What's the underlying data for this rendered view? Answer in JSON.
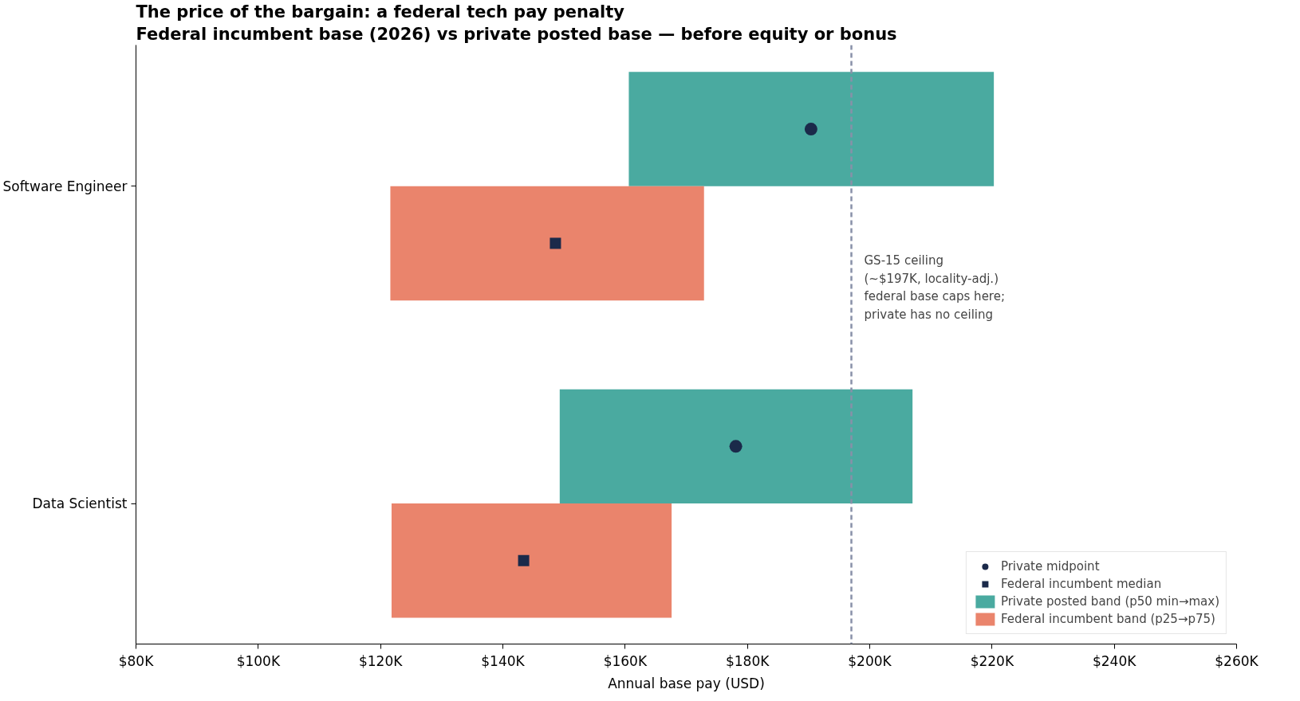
{
  "chart_data": {
    "type": "bar",
    "orientation": "horizontal",
    "title": "The price of the bargain: a federal tech pay penalty",
    "subtitle": "Federal incumbent base (2026) vs private posted base — before equity or bonus",
    "xlabel": "Annual base pay (USD)",
    "categories": [
      "Software Engineer",
      "Data Scientist"
    ],
    "series": [
      {
        "name": "Private midpoint",
        "type": "scatter",
        "marker": "circle",
        "color": "#1b2a4a",
        "values": [
          190.4,
          178.1
        ]
      },
      {
        "name": "Federal incumbent median",
        "type": "scatter",
        "marker": "square",
        "color": "#1b2a4a",
        "values": [
          148.6,
          143.4
        ]
      },
      {
        "name": "Private posted band (p50 min→max)",
        "color": "#4aaaa0",
        "base": [
          160.6,
          149.3
        ],
        "values": [
          59.7,
          57.7
        ]
      },
      {
        "name": "Federal incumbent band (p25→p75)",
        "color": "#ea846c",
        "base": [
          121.6,
          121.8
        ],
        "values": [
          51.3,
          45.8
        ]
      }
    ],
    "xlim": [
      80,
      260
    ],
    "xticks": [
      {
        "value": 80,
        "label": "$80K"
      },
      {
        "value": 100,
        "label": "$100K"
      },
      {
        "value": 120,
        "label": "$120K"
      },
      {
        "value": 140,
        "label": "$140K"
      },
      {
        "value": 160,
        "label": "$160K"
      },
      {
        "value": 180,
        "label": "$180K"
      },
      {
        "value": 200,
        "label": "$200K"
      },
      {
        "value": 220,
        "label": "$220K"
      },
      {
        "value": 240,
        "label": "$240K"
      },
      {
        "value": 260,
        "label": "$260K"
      }
    ],
    "ref_lines": [
      {
        "axis": "x",
        "value": 197,
        "color": "#8890a8",
        "line_style": "dashed"
      }
    ],
    "annotations": [
      {
        "text": "GS-15 ceiling\n(~$197K, locality-adj.)\nfederal base caps here;\nprivate has no ceiling",
        "x": 197
      }
    ],
    "grid": false,
    "legend": "bottom right"
  }
}
